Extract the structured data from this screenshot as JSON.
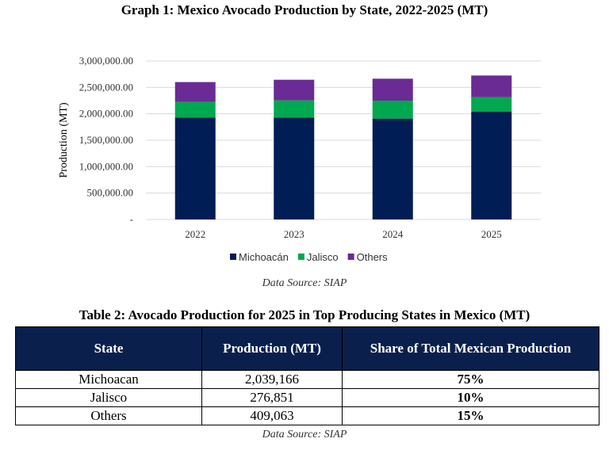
{
  "chart_data": {
    "type": "bar",
    "stacked": true,
    "title": "Graph 1: Mexico Avocado Production by State, 2022-2025 (MT)",
    "xlabel": "",
    "ylabel": "Production (MT)",
    "ylim": [
      0,
      3000000
    ],
    "yticks": [
      0,
      500000,
      1000000,
      1500000,
      2000000,
      2500000,
      3000000
    ],
    "ytick_labels": [
      "-",
      "500,000.00",
      "1,000,000.00",
      "1,500,000.00",
      "2,000,000.00",
      "2,500,000.00",
      "3,000,000.00"
    ],
    "grid": true,
    "legend": "bottom",
    "categories": [
      "2022",
      "2023",
      "2024",
      "2025"
    ],
    "series": [
      {
        "name": "Michoacán",
        "color": "#001d56",
        "values": [
          1930000,
          1930000,
          1910000,
          2039166
        ]
      },
      {
        "name": "Jalisco",
        "color": "#00a84f",
        "values": [
          295000,
          325000,
          340000,
          276851
        ]
      },
      {
        "name": "Others",
        "color": "#6a2b94",
        "values": [
          376000,
          390000,
          415000,
          409063
        ]
      }
    ]
  },
  "graph_source": "Data Source: SIAP",
  "table": {
    "title": "Table 2: Avocado Production for 2025 in Top Producing States in Mexico (MT)",
    "headers": [
      "State",
      "Production (MT)",
      "Share of Total Mexican Production"
    ],
    "rows": [
      [
        "Michoacan",
        "2,039,166",
        "75%"
      ],
      [
        "Jalisco",
        "276,851",
        "10%"
      ],
      [
        "Others",
        "409,063",
        "15%"
      ]
    ],
    "source": "Data Source: SIAP"
  }
}
